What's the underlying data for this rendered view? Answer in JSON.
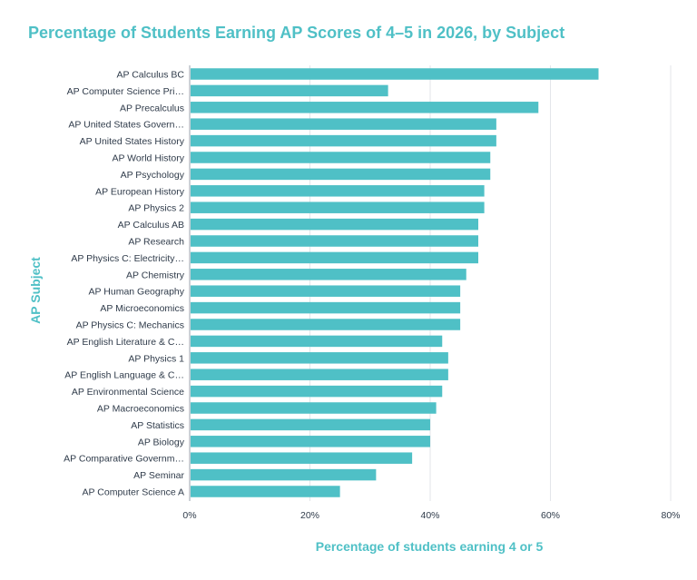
{
  "chart_data": {
    "type": "bar",
    "orientation": "horizontal",
    "title": "Percentage of Students Earning AP Scores of 4–5 in 2026, by Subject",
    "xlabel": "Percentage of students earning 4 or 5",
    "ylabel": "AP Subject",
    "xlim": [
      0,
      80
    ],
    "x_ticks": [
      "0%",
      "20%",
      "40%",
      "60%",
      "80%"
    ],
    "grid": "vertical",
    "bar_color": "#4fc0c6",
    "categories": [
      "AP Calculus BC",
      "AP Computer Science Pri…",
      "AP Precalculus",
      "AP United States Govern…",
      "AP United States History",
      "AP World History",
      "AP Psychology",
      "AP European History",
      "AP Physics 2",
      "AP Calculus AB",
      "AP Research",
      "AP Physics C: Electricity…",
      "AP Chemistry",
      "AP Human Geography",
      "AP Microeconomics",
      "AP Physics C: Mechanics",
      "AP English Literature & C…",
      "AP Physics 1",
      "AP English Language & C…",
      "AP Environmental Science",
      "AP Macroeconomics",
      "AP Statistics",
      "AP Biology",
      "AP Comparative Governm…",
      "AP Seminar",
      "AP Computer Science A"
    ],
    "values": [
      68,
      33,
      58,
      51,
      51,
      50,
      50,
      49,
      49,
      48,
      48,
      48,
      46,
      45,
      45,
      45,
      42,
      43,
      43,
      42,
      41,
      40,
      40,
      37,
      31,
      25
    ]
  }
}
